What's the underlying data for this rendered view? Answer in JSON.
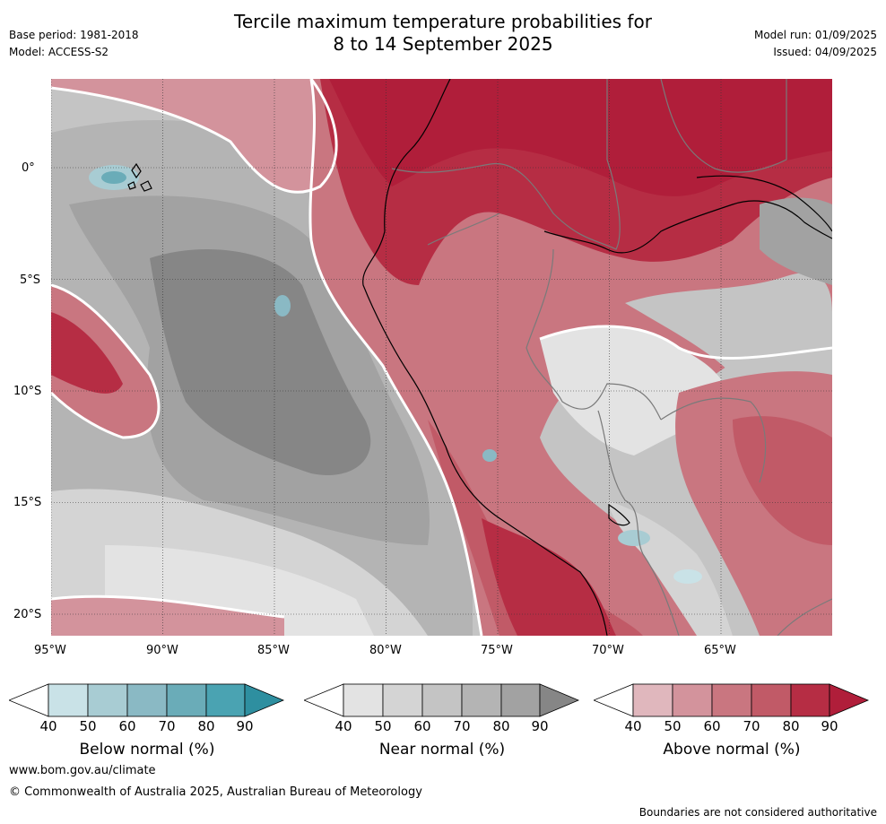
{
  "header": {
    "title_line1": "Tercile maximum temperature probabilities for",
    "title_line2": "8 to 14 September 2025",
    "base_period": "Base period: 1981-2018",
    "model": "Model: ACCESS-S2",
    "model_run": "Model run: 01/09/2025",
    "issued": "Issued: 04/09/2025"
  },
  "map": {
    "lon_ticks": [
      "95°W",
      "90°W",
      "85°W",
      "80°W",
      "75°W",
      "70°W",
      "65°W"
    ],
    "lat_ticks": [
      "0°",
      "5°S",
      "10°S",
      "15°S",
      "20°S"
    ],
    "lon_range": [
      -95,
      -60
    ],
    "lat_range": [
      -21,
      4
    ]
  },
  "colorbars": [
    {
      "label": "Below normal (%)",
      "ticks": [
        "40",
        "50",
        "60",
        "70",
        "80",
        "90"
      ],
      "colors": [
        "#ffffff",
        "#c9e2e7",
        "#a8ccd3",
        "#8ab9c4",
        "#6aacb8",
        "#4aa3b2",
        "#2e8fa0"
      ]
    },
    {
      "label": "Near normal (%)",
      "ticks": [
        "40",
        "50",
        "60",
        "70",
        "80",
        "90"
      ],
      "colors": [
        "#ffffff",
        "#e3e3e3",
        "#d4d4d4",
        "#c4c4c4",
        "#b4b4b4",
        "#a2a2a2",
        "#868686"
      ]
    },
    {
      "label": "Above normal (%)",
      "ticks": [
        "40",
        "50",
        "60",
        "70",
        "80",
        "90"
      ],
      "colors": [
        "#ffffff",
        "#e0b7bd",
        "#d3939c",
        "#c97680",
        "#c15a67",
        "#b62d44",
        "#b01e3a"
      ]
    }
  ],
  "footer": {
    "website": "www.bom.gov.au/climate",
    "copyright": "© Commonwealth of Australia 2025, Australian Bureau of Meteorology",
    "boundaries_note": "Boundaries are not considered authoritative"
  }
}
